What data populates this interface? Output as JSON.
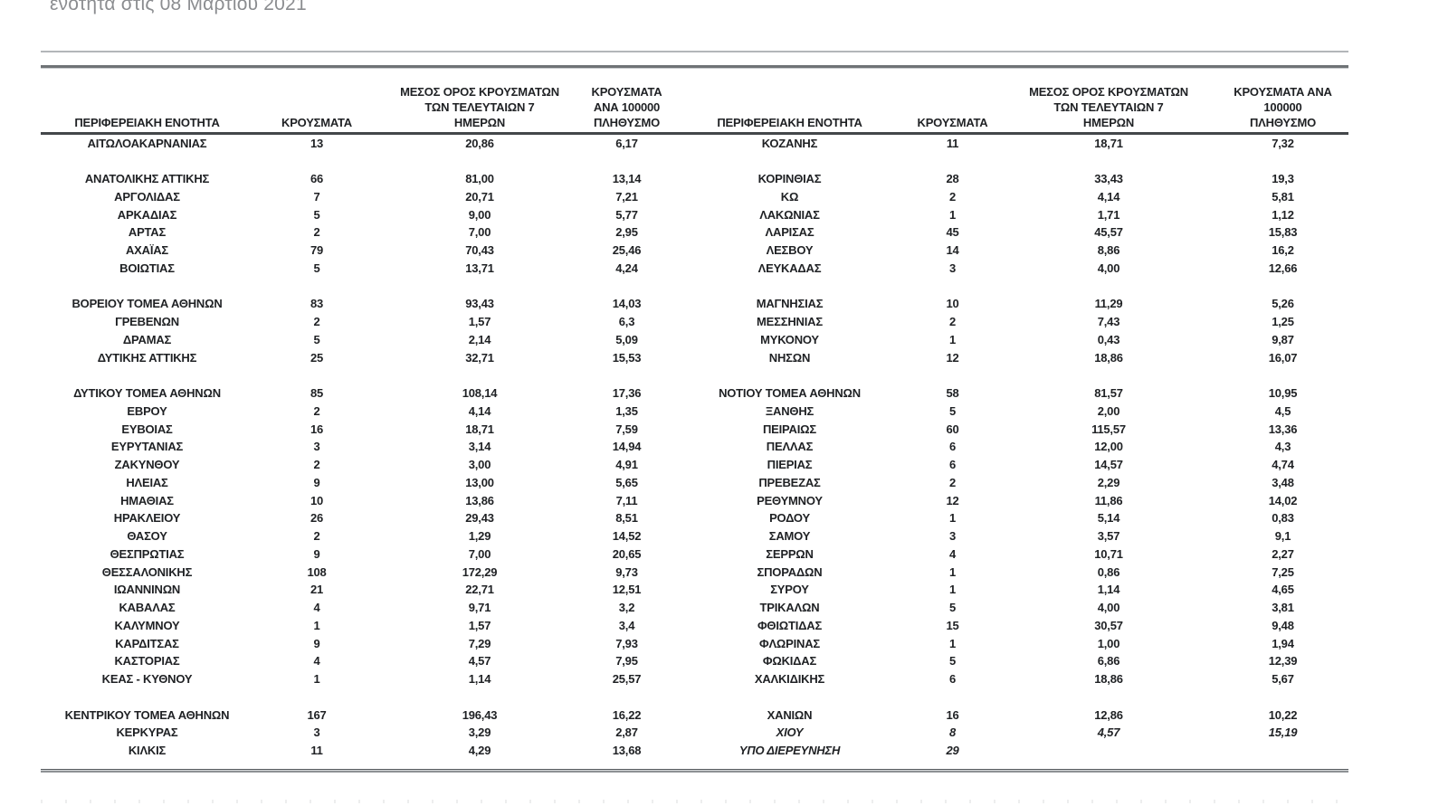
{
  "page": {
    "title_line": "ενότητα στις 08 Μαρτίου 2021"
  },
  "colors": {
    "text": "#1f2124",
    "title": "#8b8d90",
    "rule_dark": "#6f7376",
    "rule_light": "#b3b6b9"
  },
  "table": {
    "headers": {
      "region": "ΠΕΡΙΦΕΡΕΙΑΚΗ ΕΝΟΤΗΤΑ",
      "cases": "ΚΡΟΥΣΜΑΤΑ",
      "avg7": "ΜΕΣΟΣ ΟΡΟΣ ΚΡΟΥΣΜΑΤΩΝ\nΤΩΝ ΤΕΛΕΥΤΑΙΩΝ 7\nΗΜΕΡΩΝ",
      "per100k": "ΚΡΟΥΣΜΑΤΑ ΑΝΑ 100000\nΠΛΗΘΥΣΜΟ"
    },
    "left_rows": [
      {
        "region": "ΑΙΤΩΛΟΑΚΑΡΝΑΝΙΑΣ",
        "cases": "13",
        "avg7": "20,86",
        "per100k": "6,17"
      },
      {
        "blank": true
      },
      {
        "region": "ΑΝΑΤΟΛΙΚΗΣ ΑΤΤΙΚΗΣ",
        "cases": "66",
        "avg7": "81,00",
        "per100k": "13,14"
      },
      {
        "region": "ΑΡΓΟΛΙΔΑΣ",
        "cases": "7",
        "avg7": "20,71",
        "per100k": "7,21"
      },
      {
        "region": "ΑΡΚΑΔΙΑΣ",
        "cases": "5",
        "avg7": "9,00",
        "per100k": "5,77"
      },
      {
        "region": "ΑΡΤΑΣ",
        "cases": "2",
        "avg7": "7,00",
        "per100k": "2,95"
      },
      {
        "region": "ΑΧΑΪΑΣ",
        "cases": "79",
        "avg7": "70,43",
        "per100k": "25,46"
      },
      {
        "region": "ΒΟΙΩΤΙΑΣ",
        "cases": "5",
        "avg7": "13,71",
        "per100k": "4,24"
      },
      {
        "blank": true
      },
      {
        "region": "ΒΟΡΕΙΟΥ ΤΟΜΕΑ ΑΘΗΝΩΝ",
        "cases": "83",
        "avg7": "93,43",
        "per100k": "14,03"
      },
      {
        "region": "ΓΡΕΒΕΝΩΝ",
        "cases": "2",
        "avg7": "1,57",
        "per100k": "6,3"
      },
      {
        "region": "ΔΡΑΜΑΣ",
        "cases": "5",
        "avg7": "2,14",
        "per100k": "5,09"
      },
      {
        "region": "ΔΥΤΙΚΗΣ ΑΤΤΙΚΗΣ",
        "cases": "25",
        "avg7": "32,71",
        "per100k": "15,53"
      },
      {
        "blank": true
      },
      {
        "region": "ΔΥΤΙΚΟΥ ΤΟΜΕΑ ΑΘΗΝΩΝ",
        "cases": "85",
        "avg7": "108,14",
        "per100k": "17,36"
      },
      {
        "region": "ΕΒΡΟΥ",
        "cases": "2",
        "avg7": "4,14",
        "per100k": "1,35"
      },
      {
        "region": "ΕΥΒΟΙΑΣ",
        "cases": "16",
        "avg7": "18,71",
        "per100k": "7,59"
      },
      {
        "region": "ΕΥΡΥΤΑΝΙΑΣ",
        "cases": "3",
        "avg7": "3,14",
        "per100k": "14,94"
      },
      {
        "region": "ΖΑΚΥΝΘΟΥ",
        "cases": "2",
        "avg7": "3,00",
        "per100k": "4,91"
      },
      {
        "region": "ΗΛΕΙΑΣ",
        "cases": "9",
        "avg7": "13,00",
        "per100k": "5,65"
      },
      {
        "region": "ΗΜΑΘΙΑΣ",
        "cases": "10",
        "avg7": "13,86",
        "per100k": "7,11"
      },
      {
        "region": "ΗΡΑΚΛΕΙΟΥ",
        "cases": "26",
        "avg7": "29,43",
        "per100k": "8,51"
      },
      {
        "region": "ΘΑΣΟΥ",
        "cases": "2",
        "avg7": "1,29",
        "per100k": "14,52"
      },
      {
        "region": "ΘΕΣΠΡΩΤΙΑΣ",
        "cases": "9",
        "avg7": "7,00",
        "per100k": "20,65"
      },
      {
        "region": "ΘΕΣΣΑΛΟΝΙΚΗΣ",
        "cases": "108",
        "avg7": "172,29",
        "per100k": "9,73"
      },
      {
        "region": "ΙΩΑΝΝΙΝΩΝ",
        "cases": "21",
        "avg7": "22,71",
        "per100k": "12,51"
      },
      {
        "region": "ΚΑΒΑΛΑΣ",
        "cases": "4",
        "avg7": "9,71",
        "per100k": "3,2"
      },
      {
        "region": "ΚΑΛΥΜΝΟΥ",
        "cases": "1",
        "avg7": "1,57",
        "per100k": "3,4"
      },
      {
        "region": "ΚΑΡΔΙΤΣΑΣ",
        "cases": "9",
        "avg7": "7,29",
        "per100k": "7,93"
      },
      {
        "region": "ΚΑΣΤΟΡΙΑΣ",
        "cases": "4",
        "avg7": "4,57",
        "per100k": "7,95"
      },
      {
        "region": "ΚΕΑΣ - ΚΥΘΝΟΥ",
        "cases": "1",
        "avg7": "1,14",
        "per100k": "25,57"
      },
      {
        "blank": true
      },
      {
        "region": "ΚΕΝΤΡΙΚΟΥ ΤΟΜΕΑ ΑΘΗΝΩΝ",
        "cases": "167",
        "avg7": "196,43",
        "per100k": "16,22"
      },
      {
        "region": "ΚΕΡΚΥΡΑΣ",
        "cases": "3",
        "avg7": "3,29",
        "per100k": "2,87"
      },
      {
        "region": "ΚΙΛΚΙΣ",
        "cases": "11",
        "avg7": "4,29",
        "per100k": "13,68"
      }
    ],
    "right_rows": [
      {
        "region": "ΚΟΖΑΝΗΣ",
        "cases": "11",
        "avg7": "18,71",
        "per100k": "7,32"
      },
      {
        "blank": true
      },
      {
        "region": "ΚΟΡΙΝΘΙΑΣ",
        "cases": "28",
        "avg7": "33,43",
        "per100k": "19,3"
      },
      {
        "region": "ΚΩ",
        "cases": "2",
        "avg7": "4,14",
        "per100k": "5,81"
      },
      {
        "region": "ΛΑΚΩΝΙΑΣ",
        "cases": "1",
        "avg7": "1,71",
        "per100k": "1,12"
      },
      {
        "region": "ΛΑΡΙΣΑΣ",
        "cases": "45",
        "avg7": "45,57",
        "per100k": "15,83"
      },
      {
        "region": "ΛΕΣΒΟΥ",
        "cases": "14",
        "avg7": "8,86",
        "per100k": "16,2"
      },
      {
        "region": "ΛΕΥΚΑΔΑΣ",
        "cases": "3",
        "avg7": "4,00",
        "per100k": "12,66"
      },
      {
        "blank": true
      },
      {
        "region": "ΜΑΓΝΗΣΙΑΣ",
        "cases": "10",
        "avg7": "11,29",
        "per100k": "5,26"
      },
      {
        "region": "ΜΕΣΣΗΝΙΑΣ",
        "cases": "2",
        "avg7": "7,43",
        "per100k": "1,25"
      },
      {
        "region": "ΜΥΚΟΝΟΥ",
        "cases": "1",
        "avg7": "0,43",
        "per100k": "9,87"
      },
      {
        "region": "ΝΗΣΩΝ",
        "cases": "12",
        "avg7": "18,86",
        "per100k": "16,07"
      },
      {
        "blank": true
      },
      {
        "region": "ΝΟΤΙΟΥ ΤΟΜΕΑ ΑΘΗΝΩΝ",
        "cases": "58",
        "avg7": "81,57",
        "per100k": "10,95"
      },
      {
        "region": "ΞΑΝΘΗΣ",
        "cases": "5",
        "avg7": "2,00",
        "per100k": "4,5"
      },
      {
        "region": "ΠΕΙΡΑΙΩΣ",
        "cases": "60",
        "avg7": "115,57",
        "per100k": "13,36"
      },
      {
        "region": "ΠΕΛΛΑΣ",
        "cases": "6",
        "avg7": "12,00",
        "per100k": "4,3"
      },
      {
        "region": "ΠΙΕΡΙΑΣ",
        "cases": "6",
        "avg7": "14,57",
        "per100k": "4,74"
      },
      {
        "region": "ΠΡΕΒΕΖΑΣ",
        "cases": "2",
        "avg7": "2,29",
        "per100k": "3,48"
      },
      {
        "region": "ΡΕΘΥΜΝΟΥ",
        "cases": "12",
        "avg7": "11,86",
        "per100k": "14,02"
      },
      {
        "region": "ΡΟΔΟΥ",
        "cases": "1",
        "avg7": "5,14",
        "per100k": "0,83"
      },
      {
        "region": "ΣΑΜΟΥ",
        "cases": "3",
        "avg7": "3,57",
        "per100k": "9,1"
      },
      {
        "region": "ΣΕΡΡΩΝ",
        "cases": "4",
        "avg7": "10,71",
        "per100k": "2,27"
      },
      {
        "region": "ΣΠΟΡΑΔΩΝ",
        "cases": "1",
        "avg7": "0,86",
        "per100k": "7,25"
      },
      {
        "region": "ΣΥΡΟΥ",
        "cases": "1",
        "avg7": "1,14",
        "per100k": "4,65"
      },
      {
        "region": "ΤΡΙΚΑΛΩΝ",
        "cases": "5",
        "avg7": "4,00",
        "per100k": "3,81"
      },
      {
        "region": "ΦΘΙΩΤΙΔΑΣ",
        "cases": "15",
        "avg7": "30,57",
        "per100k": "9,48"
      },
      {
        "region": "ΦΛΩΡΙΝΑΣ",
        "cases": "1",
        "avg7": "1,00",
        "per100k": "1,94"
      },
      {
        "region": "ΦΩΚΙΔΑΣ",
        "cases": "5",
        "avg7": "6,86",
        "per100k": "12,39"
      },
      {
        "region": "ΧΑΛΚΙΔΙΚΗΣ",
        "cases": "6",
        "avg7": "18,86",
        "per100k": "5,67"
      },
      {
        "blank": true
      },
      {
        "region": "ΧΑΝΙΩΝ",
        "cases": "16",
        "avg7": "12,86",
        "per100k": "10,22"
      },
      {
        "region": "ΧΙΟΥ",
        "cases": "8",
        "avg7": "4,57",
        "per100k": "15,19",
        "italic": true
      },
      {
        "region": "ΥΠΟ ΔΙΕΡΕΥΝΗΣΗ",
        "cases": "29",
        "avg7": "",
        "per100k": "",
        "italic": true
      }
    ]
  }
}
